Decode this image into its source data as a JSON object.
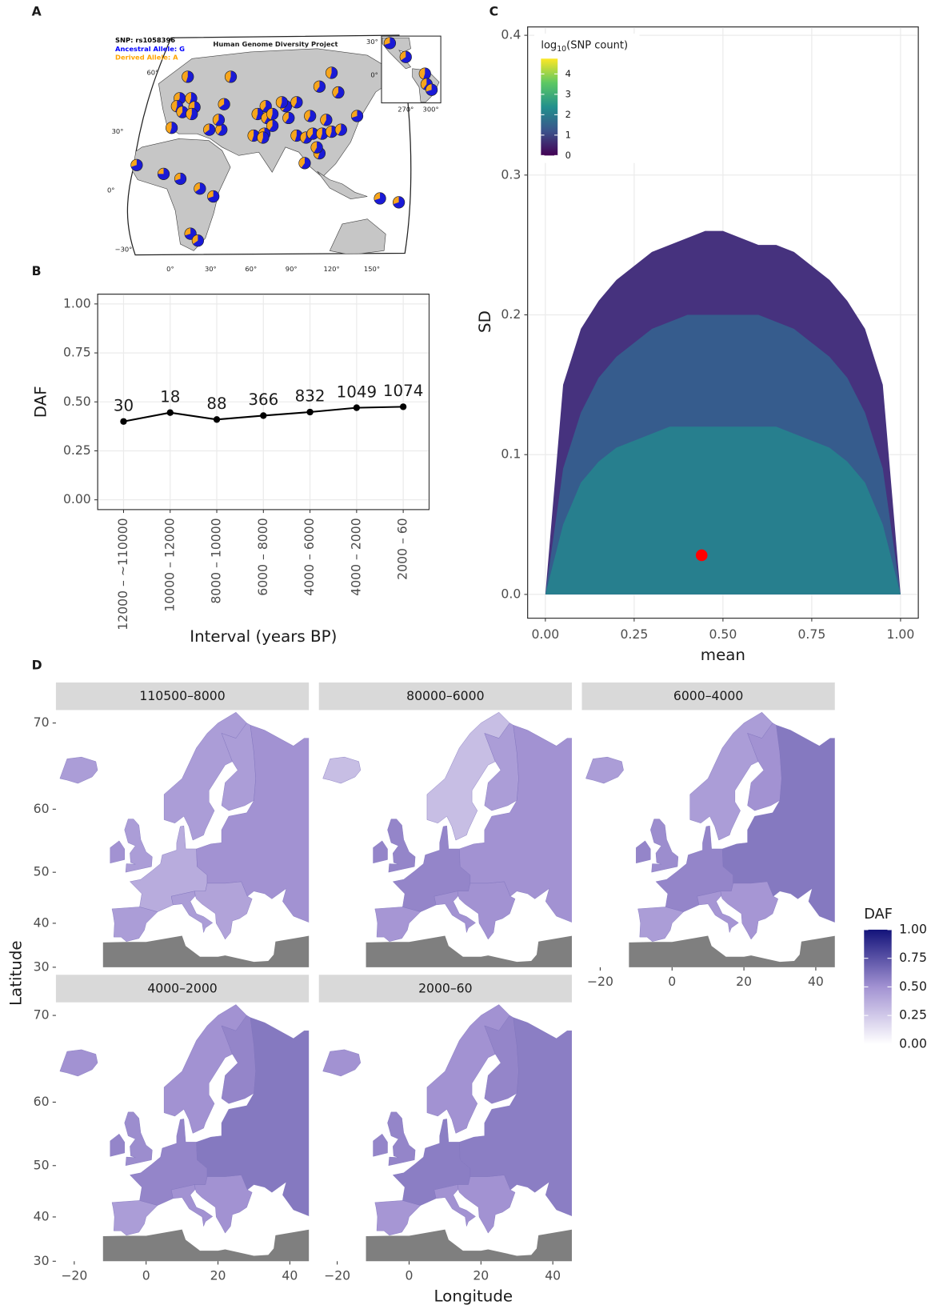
{
  "chart_data": [
    {
      "type": "pie_map",
      "panel_label": "A",
      "title": "Human Genome Diversity Project",
      "legend": [
        "SNP: rs1058396",
        "Ancestral Allele: G",
        "Derived Allele: A"
      ],
      "legend_colors": [
        "#000000",
        "#0000ff",
        "#ffa500"
      ],
      "ancestral_color": "#1a1ad6",
      "derived_color": "#f7a51c",
      "xticks": [
        {
          "value": 0,
          "label": "0°"
        },
        {
          "value": 30,
          "label": "30°"
        },
        {
          "value": 60,
          "label": "60°"
        },
        {
          "value": 90,
          "label": "90°"
        },
        {
          "value": 120,
          "label": "120°"
        },
        {
          "value": 150,
          "label": "150°"
        }
      ],
      "yticks": [
        {
          "value": 60,
          "label": "60°"
        },
        {
          "value": 30,
          "label": "30°"
        },
        {
          "value": 0,
          "label": "0°"
        },
        {
          "value": -30,
          "label": "−30°"
        }
      ],
      "lon": [
        13,
        7,
        5,
        9,
        15.5,
        18,
        16,
        40,
        1,
        29,
        38,
        36,
        62,
        71,
        65,
        72,
        76,
        86,
        83,
        94,
        88,
        76,
        70,
        69,
        94,
        104,
        111,
        120,
        101,
        106,
        113,
        120,
        127,
        125,
        139,
        111,
        109,
        100,
        116,
        22,
        32,
        -5,
        7.5,
        -25,
        15,
        20.5,
        45,
        156,
        170
      ],
      "lat": [
        58,
        47,
        43,
        40,
        47,
        42.5,
        39,
        44,
        32,
        31,
        31,
        36,
        28,
        43,
        39,
        37,
        33,
        43,
        45,
        45,
        37,
        39,
        29,
        27,
        28,
        38,
        53,
        60,
        27,
        29,
        29,
        30,
        31,
        50,
        38,
        19,
        22,
        14,
        36,
        1,
        -3,
        8.5,
        6,
        13,
        -22,
        -25.5,
        58,
        -4,
        -6
      ],
      "values": [
        0.45,
        0.42,
        0.45,
        0.4,
        0.45,
        0.42,
        0.45,
        0.35,
        0.45,
        0.35,
        0.4,
        0.4,
        0.45,
        0.4,
        0.45,
        0.42,
        0.4,
        0.4,
        0.45,
        0.42,
        0.4,
        0.45,
        0.42,
        0.45,
        0.45,
        0.42,
        0.4,
        0.45,
        0.42,
        0.4,
        0.45,
        0.45,
        0.42,
        0.4,
        0.3,
        0.45,
        0.42,
        0.4,
        0.42,
        0.35,
        0.3,
        0.25,
        0.3,
        0.3,
        0.3,
        0.35,
        0.45,
        0.3,
        0.3
      ],
      "inset": {
        "xticks": [
          {
            "value": 270,
            "label": "270°"
          },
          {
            "value": 300,
            "label": "300°"
          }
        ],
        "yticks": [
          {
            "value": 30,
            "label": "30°"
          },
          {
            "value": 0,
            "label": "0°"
          }
        ],
        "lon": [
          251,
          270,
          293,
          295,
          301
        ],
        "lat": [
          29,
          16.5,
          1.5,
          -8,
          -13
        ],
        "values": [
          0.3,
          0.35,
          0.45,
          0.4,
          0.3
        ]
      }
    },
    {
      "type": "line",
      "panel_label": "B",
      "xlabel": "Interval (years BP)",
      "ylabel": "DAF",
      "categories": [
        "12000 – ~110000",
        "10000 – 12000",
        "8000 – 10000",
        "6000 – 8000",
        "4000 – 6000",
        "4000 – 2000",
        "2000 – 60"
      ],
      "values": [
        0.4,
        0.445,
        0.41,
        0.43,
        0.448,
        0.47,
        0.475
      ],
      "sample_sizes": [
        30,
        18,
        88,
        366,
        832,
        1049,
        1074
      ],
      "color": "#000000",
      "grid": true,
      "ylim": [
        -0.05,
        1.05
      ],
      "yticks": [
        {
          "value": 0,
          "label": "0.00"
        },
        {
          "value": 0.25,
          "label": "0.25"
        },
        {
          "value": 0.5,
          "label": "0.50"
        },
        {
          "value": 0.75,
          "label": "0.75"
        },
        {
          "value": 1,
          "label": "1.00"
        }
      ]
    },
    {
      "type": "hexbin",
      "panel_label": "C",
      "xlabel": "mean",
      "ylabel": "SD",
      "grid": true,
      "xlim": [
        -0.05,
        1.05
      ],
      "ylim": [
        -0.017,
        0.406
      ],
      "xticks": [
        {
          "value": 0,
          "label": "0.00"
        },
        {
          "value": 0.25,
          "label": "0.25"
        },
        {
          "value": 0.5,
          "label": "0.50"
        },
        {
          "value": 0.75,
          "label": "0.75"
        },
        {
          "value": 1,
          "label": "1.00"
        }
      ],
      "yticks": [
        {
          "value": 0,
          "label": "0.0"
        },
        0.1,
        0.2,
        0.3,
        0.4
      ],
      "x": [
        0,
        0.05,
        0.1,
        0.15,
        0.2,
        0.25,
        0.3,
        0.35,
        0.4,
        0.45,
        0.5,
        0.55,
        0.6,
        0.65,
        0.7,
        0.75,
        0.8,
        0.85,
        0.9,
        0.95,
        1
      ],
      "layers": [
        {
          "color": "#46327e",
          "values": [
            0,
            0.15,
            0.19,
            0.21,
            0.225,
            0.235,
            0.245,
            0.25,
            0.255,
            0.26,
            0.26,
            0.255,
            0.25,
            0.25,
            0.245,
            0.235,
            0.225,
            0.21,
            0.19,
            0.15,
            0
          ]
        },
        {
          "color": "#365c8d",
          "values": [
            0,
            0.09,
            0.13,
            0.155,
            0.17,
            0.18,
            0.19,
            0.195,
            0.2,
            0.2,
            0.2,
            0.2,
            0.2,
            0.195,
            0.19,
            0.18,
            0.17,
            0.155,
            0.13,
            0.09,
            0
          ]
        },
        {
          "color": "#277f8e",
          "values": [
            0,
            0.05,
            0.08,
            0.095,
            0.105,
            0.11,
            0.115,
            0.12,
            0.12,
            0.12,
            0.12,
            0.12,
            0.12,
            0.12,
            0.115,
            0.11,
            0.105,
            0.095,
            0.08,
            0.05,
            0
          ]
        }
      ],
      "highlight": {
        "x": 0.44,
        "y": 0.028,
        "color": "#ff0000"
      },
      "colorbar": {
        "title_parts": [
          "log",
          "10",
          "(SNP count)"
        ],
        "lim": [
          0,
          4.75
        ],
        "ticks": [
          0,
          1,
          2,
          3,
          4
        ],
        "colors": [
          "#440154",
          "#3b528b",
          "#21908d",
          "#5dc863",
          "#fde725"
        ]
      }
    },
    {
      "type": "choropleth",
      "panel_label": "D",
      "xlabel": "Longitude",
      "ylabel": "Latitude",
      "xlim": [
        -25.1,
        45.3
      ],
      "ylim": [
        30,
        71.2
      ],
      "xticks": [
        {
          "value": -20,
          "label": "−20"
        },
        0,
        20,
        40
      ],
      "yticks": [
        30,
        40,
        50,
        60,
        70
      ],
      "facets": [
        {
          "title": "110500–8000",
          "values": [
            0.45,
            0.5,
            0.45,
            0.45,
            0.38,
            0.45,
            0.42,
            0.45,
            0.45,
            0.5
          ]
        },
        {
          "title": "80000–6000",
          "values": [
            0.3,
            0.55,
            0.55,
            0.48,
            0.55,
            0.5,
            0.5,
            0.3,
            0.45,
            0.5
          ]
        },
        {
          "title": "6000–4000",
          "values": [
            0.45,
            0.55,
            0.52,
            0.45,
            0.55,
            0.48,
            0.48,
            0.45,
            0.5,
            0.6
          ]
        },
        {
          "title": "4000–2000",
          "values": [
            0.5,
            0.55,
            0.52,
            0.45,
            0.55,
            0.5,
            0.5,
            0.5,
            0.55,
            0.6
          ]
        },
        {
          "title": "2000–60",
          "values": [
            0.5,
            0.55,
            0.55,
            0.48,
            0.58,
            0.5,
            0.5,
            0.5,
            0.55,
            0.58
          ]
        }
      ],
      "legend": {
        "title": "DAF",
        "lim": [
          0,
          1
        ],
        "colors": [
          "#ffffff",
          "#a292d2",
          "#13137a"
        ],
        "ticks": [
          {
            "value": 0,
            "label": "0.00"
          },
          {
            "value": 0.25,
            "label": "0.25"
          },
          {
            "value": 0.5,
            "label": "0.50"
          },
          {
            "value": 0.75,
            "label": "0.75"
          },
          {
            "value": 1,
            "label": "1.00"
          }
        ]
      }
    }
  ]
}
